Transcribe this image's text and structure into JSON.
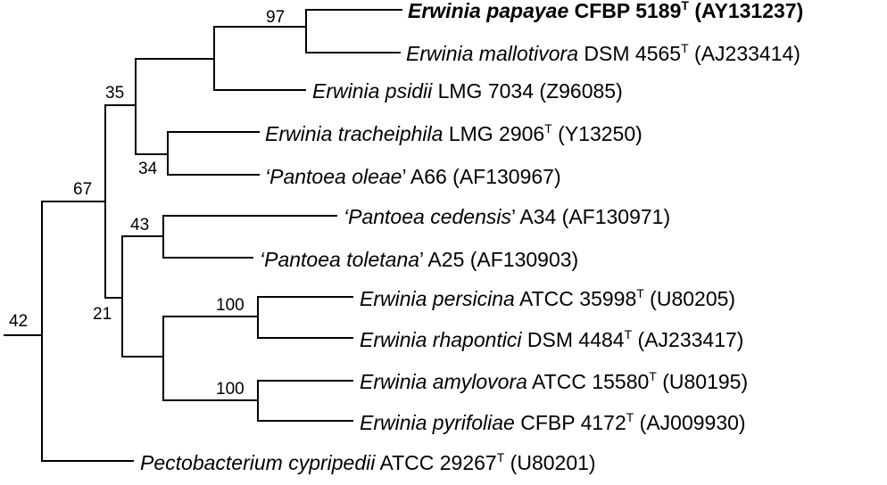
{
  "figure": {
    "type": "phylogenetic-tree",
    "taxa": [
      {
        "id": "papayae",
        "genus": "Erwinia",
        "species": "papayae",
        "strain": "CFBP 5189",
        "type_strain": true,
        "accession": "(AY131237)",
        "highlight": true,
        "quote": false
      },
      {
        "id": "mallotivora",
        "genus": "Erwinia",
        "species": "mallotivora",
        "strain": "DSM 4565",
        "type_strain": true,
        "accession": "(AJ233414)",
        "highlight": false,
        "quote": false
      },
      {
        "id": "psidii",
        "genus": "Erwinia",
        "species": "psidii",
        "strain": "LMG 7034",
        "type_strain": false,
        "accession": "(Z96085)",
        "highlight": false,
        "quote": false
      },
      {
        "id": "tracheiphila",
        "genus": "Erwinia",
        "species": "tracheiphila",
        "strain": "LMG 2906",
        "type_strain": true,
        "accession": "(Y13250)",
        "highlight": false,
        "quote": false
      },
      {
        "id": "oleae",
        "genus": "Pantoea",
        "species": "oleae",
        "strain": "A66",
        "type_strain": false,
        "accession": "(AF130967)",
        "highlight": false,
        "quote": true
      },
      {
        "id": "cedensis",
        "genus": "Pantoea",
        "species": "cedensis",
        "strain": "A34",
        "type_strain": false,
        "accession": "(AF130971)",
        "highlight": false,
        "quote": true
      },
      {
        "id": "toletana",
        "genus": "Pantoea",
        "species": "toletana",
        "strain": "A25",
        "type_strain": false,
        "accession": "(AF130903)",
        "highlight": false,
        "quote": true
      },
      {
        "id": "persicina",
        "genus": "Erwinia",
        "species": "persicina",
        "strain": "ATCC 35998",
        "type_strain": true,
        "accession": "(U80205)",
        "highlight": false,
        "quote": false
      },
      {
        "id": "rhapontici",
        "genus": "Erwinia",
        "species": "rhapontici",
        "strain": "DSM 4484",
        "type_strain": true,
        "accession": "(AJ233417)",
        "highlight": false,
        "quote": false
      },
      {
        "id": "amylovora",
        "genus": "Erwinia",
        "species": "amylovora",
        "strain": "ATCC 15580",
        "type_strain": true,
        "accession": "(U80195)",
        "highlight": false,
        "quote": false
      },
      {
        "id": "pyrifoliae",
        "genus": "Erwinia",
        "species": "pyrifoliae",
        "strain": "CFBP 4172",
        "type_strain": true,
        "accession": "(AJ009930)",
        "highlight": false,
        "quote": false
      },
      {
        "id": "cypripedii",
        "genus": "Pectobacterium",
        "species": "cypripedii",
        "strain": "ATCC 29267",
        "type_strain": true,
        "accession": "(U80201)",
        "highlight": false,
        "quote": false
      }
    ],
    "type_strain_marker": "T",
    "bootstrap_values": {
      "papayae_mallotivora": "97",
      "upper_clade": "35",
      "tracheiphila_oleae": "34",
      "ingroup": "67",
      "cedensis_toletana": "43",
      "lower_clade": "21",
      "persicina_rhapontici": "100",
      "amylovora_pyrifoliae": "100",
      "root": "42"
    },
    "colors": {
      "line": "#000000",
      "text": "#000000",
      "background": "#ffffff"
    }
  }
}
